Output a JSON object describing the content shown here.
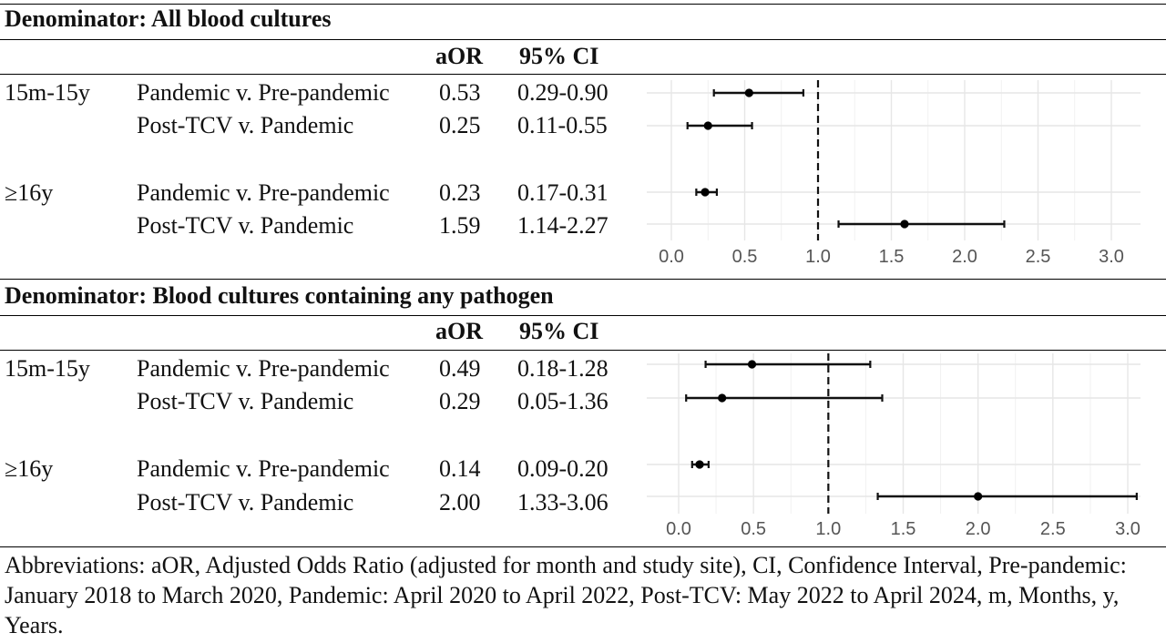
{
  "sections": [
    {
      "title": "Denominator: All blood cultures",
      "headers": {
        "aor": "aOR",
        "ci": "95% CI"
      },
      "rows": [
        {
          "group": "15m-15y",
          "comparison": "Pandemic v. Pre-pandemic",
          "aor": "0.53",
          "ci": "0.29-0.90"
        },
        {
          "group": "",
          "comparison": "Post-TCV v. Pandemic",
          "aor": "0.25",
          "ci": "0.11-0.55"
        },
        {
          "group": "≥16y",
          "comparison": "Pandemic v. Pre-pandemic",
          "aor": "0.23",
          "ci": "0.17-0.31"
        },
        {
          "group": "",
          "comparison": "Post-TCV v. Pandemic",
          "aor": "1.59",
          "ci": "1.14-2.27"
        }
      ]
    },
    {
      "title": "Denominator: Blood cultures containing any pathogen",
      "headers": {
        "aor": "aOR",
        "ci": "95% CI"
      },
      "rows": [
        {
          "group": "15m-15y",
          "comparison": "Pandemic v. Pre-pandemic",
          "aor": "0.49",
          "ci": "0.18-1.28"
        },
        {
          "group": "",
          "comparison": "Post-TCV v. Pandemic",
          "aor": "0.29",
          "ci": "0.05-1.36"
        },
        {
          "group": "≥16y",
          "comparison": "Pandemic v. Pre-pandemic",
          "aor": "0.14",
          "ci": "0.09-0.20"
        },
        {
          "group": "",
          "comparison": "Post-TCV v. Pandemic",
          "aor": "2.00",
          "ci": "1.33-3.06"
        }
      ]
    }
  ],
  "footnote": "Abbreviations: aOR, Adjusted Odds Ratio (adjusted for month and study site), CI, Confidence Interval, Pre-pandemic: January 2018 to March 2020, Pandemic: April 2020 to April 2022, Post-TCV: May 2022 to April 2024, m, Months, y, Years.",
  "chart_data": [
    {
      "type": "scatter",
      "subtype": "forest-plot",
      "title": "Denominator: All blood cultures",
      "xlim": [
        0.0,
        3.1
      ],
      "xticks": [
        "0.0",
        "0.5",
        "1.0",
        "1.5",
        "2.0",
        "2.5",
        "3.0"
      ],
      "reference_line": 1.0,
      "grid": true,
      "points": [
        {
          "group": "15m-15y",
          "comparison": "Pandemic v. Pre-pandemic",
          "aor": 0.53,
          "lower": 0.29,
          "upper": 0.9
        },
        {
          "group": "15m-15y",
          "comparison": "Post-TCV v. Pandemic",
          "aor": 0.25,
          "lower": 0.11,
          "upper": 0.55
        },
        {
          "group": "≥16y",
          "comparison": "Pandemic v. Pre-pandemic",
          "aor": 0.23,
          "lower": 0.17,
          "upper": 0.31
        },
        {
          "group": "≥16y",
          "comparison": "Post-TCV v. Pandemic",
          "aor": 1.59,
          "lower": 1.14,
          "upper": 2.27
        }
      ]
    },
    {
      "type": "scatter",
      "subtype": "forest-plot",
      "title": "Denominator: Blood cultures containing any pathogen",
      "xlim": [
        0.0,
        3.1
      ],
      "xticks": [
        "0.0",
        "0.5",
        "1.0",
        "1.5",
        "2.0",
        "2.5",
        "3.0"
      ],
      "reference_line": 1.0,
      "grid": true,
      "points": [
        {
          "group": "15m-15y",
          "comparison": "Pandemic v. Pre-pandemic",
          "aor": 0.49,
          "lower": 0.18,
          "upper": 1.28
        },
        {
          "group": "15m-15y",
          "comparison": "Post-TCV v. Pandemic",
          "aor": 0.29,
          "lower": 0.05,
          "upper": 1.36
        },
        {
          "group": "≥16y",
          "comparison": "Pandemic v. Pre-pandemic",
          "aor": 0.14,
          "lower": 0.09,
          "upper": 0.2
        },
        {
          "group": "≥16y",
          "comparison": "Post-TCV v. Pandemic",
          "aor": 2.0,
          "lower": 1.33,
          "upper": 3.06
        }
      ]
    }
  ]
}
